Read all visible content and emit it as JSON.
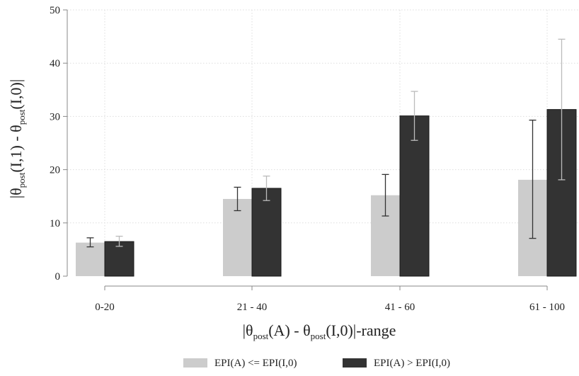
{
  "chart_data": {
    "type": "bar",
    "categories": [
      "0-20",
      "21 - 40",
      "41 - 60",
      "61 - 100"
    ],
    "series": [
      {
        "name": "EPI(A) <= EPI(I,0)",
        "color": "#cccccc",
        "error_color": "#333333",
        "values": [
          6.3,
          14.5,
          15.2,
          18.1
        ],
        "ci_low": [
          5.5,
          12.3,
          11.3,
          7.1
        ],
        "ci_high": [
          7.2,
          16.7,
          19.1,
          29.3
        ]
      },
      {
        "name": "EPI(A) > EPI(I,0)",
        "color": "#333333",
        "error_color": "#bbbbbb",
        "values": [
          6.5,
          16.5,
          30.1,
          31.3
        ],
        "ci_low": [
          5.6,
          14.2,
          25.5,
          18.1
        ],
        "ci_high": [
          7.5,
          18.8,
          34.7,
          44.5
        ]
      }
    ],
    "ylim": [
      0,
      50
    ],
    "yticks": [
      0,
      10,
      20,
      30,
      40,
      50
    ],
    "ylabel": {
      "parts": [
        "|θ",
        "post",
        "(I,1) - θ",
        "post",
        "(I,0)|"
      ]
    },
    "xlabel": {
      "parts": [
        "|θ",
        "post",
        "(A) - θ",
        "post",
        "(I,0)|-range"
      ]
    },
    "grid": true,
    "legend_position": "bottom"
  }
}
